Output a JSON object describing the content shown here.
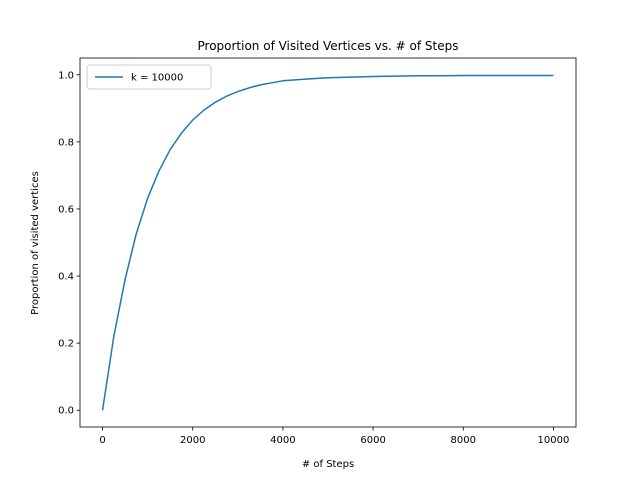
{
  "chart_data": {
    "type": "line",
    "title": "Proportion of Visited Vertices vs. # of Steps",
    "xlabel": "# of Steps",
    "ylabel": "Proportion of visited vertices",
    "xlim": [
      -500,
      10500
    ],
    "ylim": [
      -0.05,
      1.05
    ],
    "xticks": [
      0,
      2000,
      4000,
      6000,
      8000,
      10000
    ],
    "xtick_labels": [
      "0",
      "2000",
      "4000",
      "6000",
      "8000",
      "10000"
    ],
    "yticks": [
      0.0,
      0.2,
      0.4,
      0.6,
      0.8,
      1.0
    ],
    "ytick_labels": [
      "0.0",
      "0.2",
      "0.4",
      "0.6",
      "0.8",
      "1.0"
    ],
    "grid": false,
    "legend_position": "top-left",
    "series": [
      {
        "name": "k = 10000",
        "color": "#1f77b4",
        "x": [
          0,
          250,
          500,
          750,
          1000,
          1250,
          1500,
          1750,
          2000,
          2250,
          2500,
          2750,
          3000,
          3250,
          3500,
          3750,
          4000,
          4500,
          5000,
          5500,
          6000,
          6500,
          7000,
          7500,
          8000,
          8500,
          9000,
          9500,
          10000
        ],
        "y": [
          0.0,
          0.22,
          0.39,
          0.527,
          0.632,
          0.713,
          0.777,
          0.826,
          0.865,
          0.895,
          0.918,
          0.936,
          0.95,
          0.961,
          0.97,
          0.976,
          0.982,
          0.987,
          0.991,
          0.993,
          0.995,
          0.996,
          0.997,
          0.997,
          0.998,
          0.998,
          0.998,
          0.998,
          0.998
        ]
      }
    ]
  }
}
